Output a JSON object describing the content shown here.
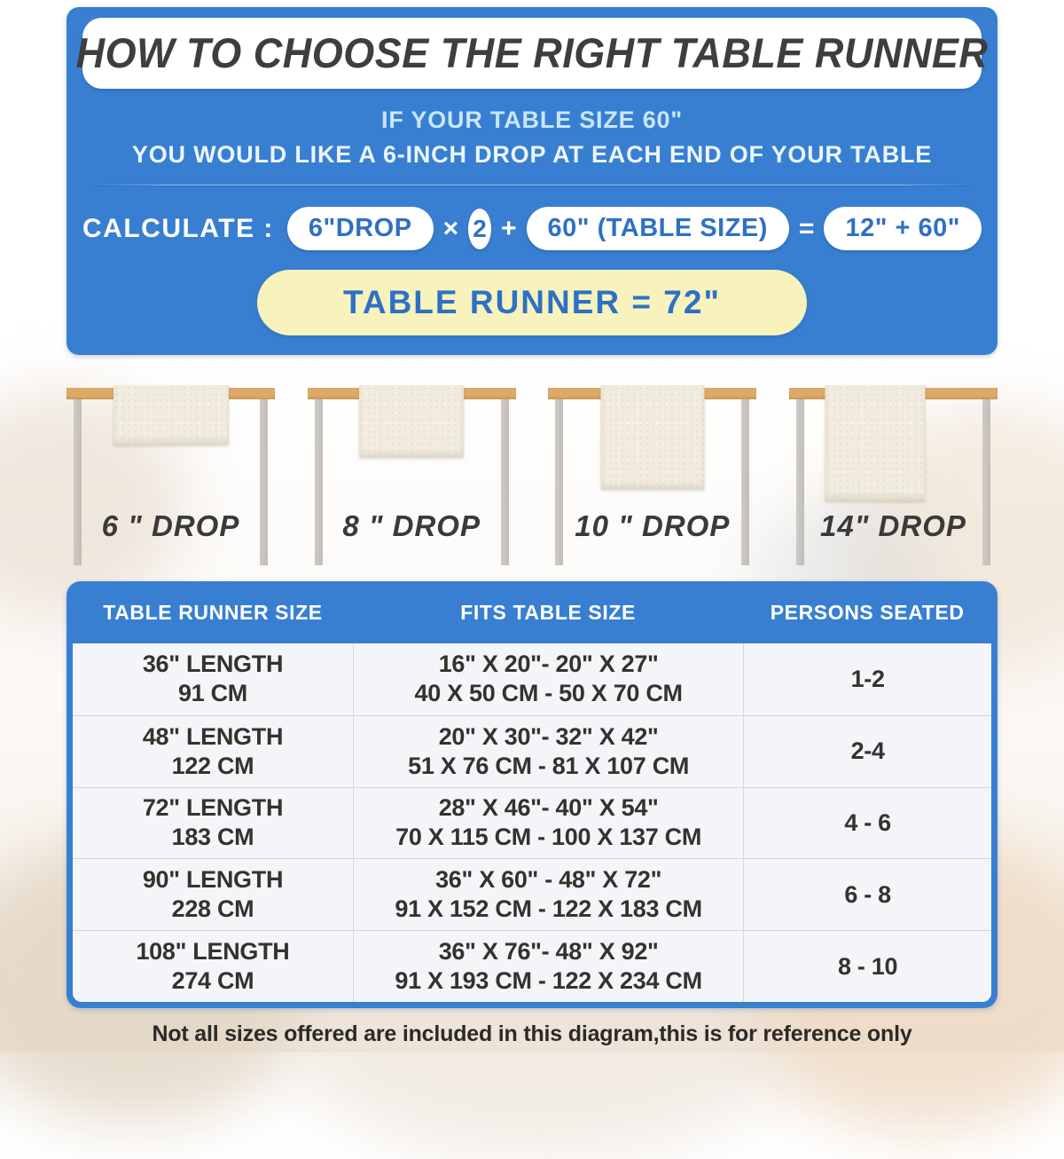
{
  "header": {
    "title": "HOW TO CHOOSE THE RIGHT TABLE RUNNER",
    "subtitle_line1": "IF YOUR TABLE SIZE 60\"",
    "subtitle_line2": "YOU WOULD LIKE A 6-INCH DROP AT EACH END OF YOUR TABLE",
    "calc": {
      "label": "CALCULATE :",
      "operand1": "6\"DROP",
      "op_multiply": "×",
      "multiplier": "2",
      "op_plus": "+",
      "operand2": "60\" (TABLE SIZE)",
      "op_equals": "=",
      "result": "12\" + 60\"",
      "final": "TABLE RUNNER = 72\""
    }
  },
  "drops": [
    {
      "label": "6 \" DROP"
    },
    {
      "label": "8 \" DROP"
    },
    {
      "label": "10 \" DROP"
    },
    {
      "label": "14\" DROP"
    }
  ],
  "size_table": {
    "columns": [
      "TABLE RUNNER SIZE",
      "FITS TABLE SIZE",
      "PERSONS SEATED"
    ],
    "rows": [
      {
        "runner_in": "36\" LENGTH",
        "runner_cm": "91 CM",
        "fits_in": "16\" X 20\"- 20\" X 27\"",
        "fits_cm": "40 X 50 CM - 50 X 70 CM",
        "persons": "1-2"
      },
      {
        "runner_in": "48\" LENGTH",
        "runner_cm": "122 CM",
        "fits_in": "20\" X 30\"- 32\" X 42\"",
        "fits_cm": "51 X 76 CM - 81 X 107 CM",
        "persons": "2-4"
      },
      {
        "runner_in": "72\" LENGTH",
        "runner_cm": "183 CM",
        "fits_in": "28\" X 46\"- 40\" X 54\"",
        "fits_cm": "70 X 115 CM - 100 X 137 CM",
        "persons": "4 - 6"
      },
      {
        "runner_in": "90\" LENGTH",
        "runner_cm": "228 CM",
        "fits_in": "36\" X 60\" - 48\" X 72\"",
        "fits_cm": "91 X 152 CM - 122 X 183 CM",
        "persons": "6 - 8"
      },
      {
        "runner_in": "108\" LENGTH",
        "runner_cm": "274 CM",
        "fits_in": "36\" X 76\"- 48\" X 92\"",
        "fits_cm": "91 X 193 CM - 122 X 234 CM",
        "persons": "8 - 10"
      }
    ]
  },
  "footnote": "Not all sizes offered are included in this diagram,this is for reference only",
  "colors": {
    "panel_blue": "#387fd2",
    "pill_text_blue": "#2e70c6",
    "result_yellow": "#f8f3bc",
    "tabletop_tan": "#dcaa66",
    "leg_gray": "#c9c4bf",
    "runner_cream": "#f1ecdf",
    "title_text": "#3e3e3e",
    "body_text": "#35322e"
  }
}
